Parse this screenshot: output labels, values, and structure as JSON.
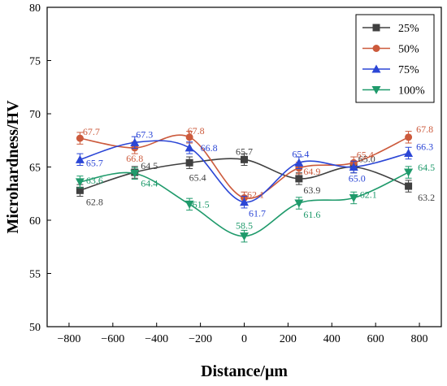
{
  "chart_data": {
    "type": "line",
    "xlabel": "Distance/μm",
    "ylabel": "Microhardness/HV",
    "xlim": [
      -900,
      900
    ],
    "ylim": [
      50,
      80
    ],
    "xticks": [
      -800,
      -600,
      -400,
      -200,
      0,
      200,
      400,
      600,
      800
    ],
    "xtick_labels": [
      "−800",
      "−600",
      "−400",
      "−200",
      "0",
      "200",
      "400",
      "600",
      "800"
    ],
    "yticks": [
      50,
      55,
      60,
      65,
      70,
      75,
      80
    ],
    "ytick_labels": [
      "50",
      "55",
      "60",
      "65",
      "70",
      "75",
      "80"
    ],
    "grid": false,
    "legend": "top-right",
    "x": [
      -750,
      -500,
      -250,
      0,
      250,
      500,
      750
    ],
    "series": [
      {
        "name": "25%",
        "color": "#404040",
        "marker": "square",
        "values": [
          62.8,
          64.5,
          65.4,
          65.7,
          63.9,
          65.0,
          63.2
        ],
        "labels": [
          "62.8",
          "64.5",
          "65.4",
          "65.7",
          "63.9",
          "65.0",
          "63.2"
        ]
      },
      {
        "name": "50%",
        "color": "#cc5a3c",
        "marker": "circle",
        "values": [
          67.7,
          66.8,
          67.8,
          62.1,
          64.9,
          65.4,
          67.8
        ],
        "labels": [
          "67.7",
          "66.8",
          "67.8",
          "62.1",
          "64.9",
          "65.4",
          "67.8"
        ]
      },
      {
        "name": "75%",
        "color": "#2b46d6",
        "marker": "triangle-up",
        "values": [
          65.7,
          67.3,
          66.8,
          61.7,
          65.4,
          65.0,
          66.3
        ],
        "labels": [
          "65.7",
          "67.3",
          "66.8",
          "61.7",
          "65.4",
          "65.0",
          "66.3"
        ]
      },
      {
        "name": "100%",
        "color": "#1f9a6b",
        "marker": "triangle-down",
        "values": [
          63.6,
          64.4,
          61.5,
          58.5,
          61.6,
          62.1,
          64.5
        ],
        "labels": [
          "63.6",
          "64.4",
          "61.5",
          "58.5",
          "61.6",
          "62.1",
          "64.5"
        ]
      }
    ]
  }
}
